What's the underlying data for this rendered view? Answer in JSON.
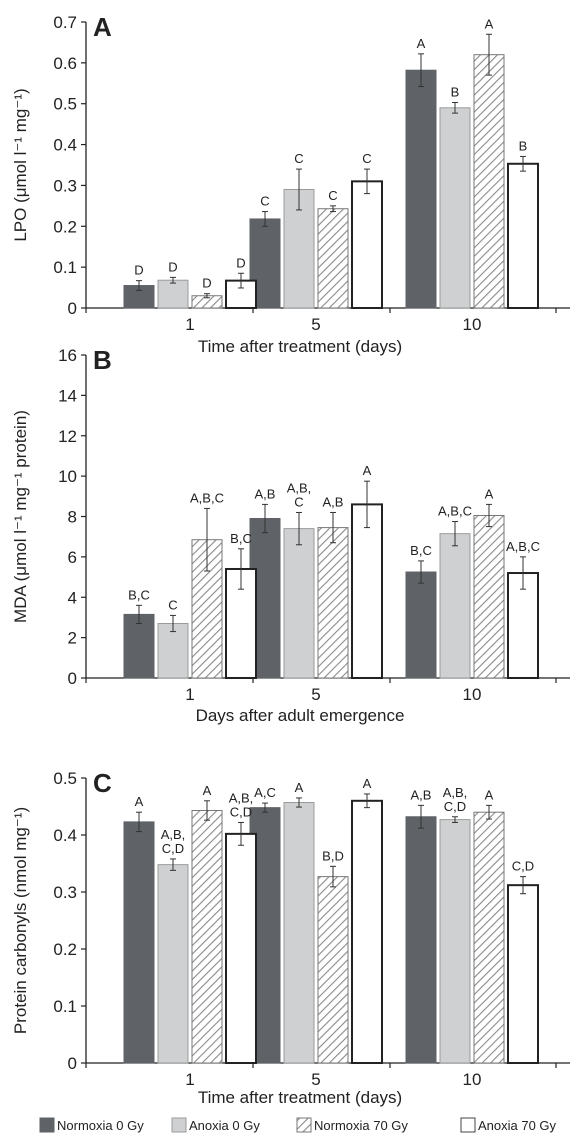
{
  "series_styles": [
    {
      "name": "Normoxia 0 Gy",
      "fill": "#5f6266",
      "stroke": "#5f6266",
      "pattern": "solid"
    },
    {
      "name": "Anoxia 0 Gy",
      "fill": "#cfd0d1",
      "stroke": "#9a9b9c",
      "pattern": "solid"
    },
    {
      "name": "Normoxia 70 Gy",
      "fill": "#ffffff",
      "stroke": "#777777",
      "pattern": "hatch"
    },
    {
      "name": "Anoxia 70 Gy",
      "fill": "#ffffff",
      "stroke": "#222222",
      "pattern": "outline"
    }
  ],
  "chart_data": [
    {
      "type": "bar",
      "panel": "A",
      "categories": [
        "1",
        "5",
        "10"
      ],
      "xlabel": "Time after treatment (days)",
      "ylabel": "LPO (μmol l⁻¹ mg⁻¹)",
      "ylim": [
        0,
        0.7
      ],
      "yticks": [
        "0",
        "0.1",
        "0.2",
        "0.3",
        "0.4",
        "0.5",
        "0.6",
        "0.7"
      ],
      "grid": false,
      "series": [
        {
          "name": "Normoxia 0 Gy",
          "values": [
            0.055,
            0.218,
            0.582
          ],
          "errors": [
            0.012,
            0.018,
            0.04
          ],
          "labels": [
            "D",
            "C",
            "A"
          ]
        },
        {
          "name": "Anoxia 0 Gy",
          "values": [
            0.068,
            0.29,
            0.49
          ],
          "errors": [
            0.007,
            0.05,
            0.013
          ],
          "labels": [
            "D",
            "C",
            "B"
          ]
        },
        {
          "name": "Normoxia 70 Gy",
          "values": [
            0.03,
            0.243,
            0.62
          ],
          "errors": [
            0.005,
            0.007,
            0.05
          ],
          "labels": [
            "D",
            "C",
            "A"
          ]
        },
        {
          "name": "Anoxia 70 Gy",
          "values": [
            0.067,
            0.31,
            0.353
          ],
          "errors": [
            0.018,
            0.03,
            0.018
          ],
          "labels": [
            "D",
            "C",
            "B"
          ]
        }
      ]
    },
    {
      "type": "bar",
      "panel": "B",
      "categories": [
        "1",
        "5",
        "10"
      ],
      "xlabel": "Days after adult emergence",
      "ylabel": "MDA (μmol l⁻¹ mg⁻¹ protein)",
      "ylim": [
        0,
        16
      ],
      "yticks": [
        "0",
        "2",
        "4",
        "6",
        "8",
        "10",
        "12",
        "14",
        "16"
      ],
      "grid": false,
      "series": [
        {
          "name": "Normoxia 0 Gy",
          "values": [
            3.15,
            7.9,
            5.25
          ],
          "errors": [
            0.45,
            0.7,
            0.55
          ],
          "labels": [
            "B,C",
            "A,B",
            "B,C"
          ]
        },
        {
          "name": "Anoxia 0 Gy",
          "values": [
            2.7,
            7.4,
            7.15
          ],
          "errors": [
            0.4,
            0.8,
            0.6
          ],
          "labels": [
            "C",
            "A,B,|C",
            "A,B,C"
          ]
        },
        {
          "name": "Normoxia 70 Gy",
          "values": [
            6.85,
            7.45,
            8.05
          ],
          "errors": [
            1.55,
            0.75,
            0.55
          ],
          "labels": [
            "A,B,C",
            "A,B",
            "A"
          ]
        },
        {
          "name": "Anoxia 70 Gy",
          "values": [
            5.4,
            8.6,
            5.2
          ],
          "errors": [
            1.0,
            1.15,
            0.8
          ],
          "labels": [
            "B,C",
            "A",
            "A,B,C"
          ]
        }
      ]
    },
    {
      "type": "bar",
      "panel": "C",
      "categories": [
        "1",
        "5",
        "10"
      ],
      "xlabel": "Time after treatment (days)",
      "ylabel": "Protein carbonyls (nmol mg⁻¹)",
      "ylim": [
        0,
        0.5
      ],
      "yticks": [
        "0",
        "0.1",
        "0.2",
        "0.3",
        "0.4",
        "0.5"
      ],
      "grid": false,
      "series": [
        {
          "name": "Normoxia 0 Gy",
          "values": [
            0.423,
            0.448,
            0.432
          ],
          "errors": [
            0.017,
            0.008,
            0.02
          ],
          "labels": [
            "A",
            "A,C",
            "A,B"
          ]
        },
        {
          "name": "Anoxia 0 Gy",
          "values": [
            0.348,
            0.457,
            0.427
          ],
          "errors": [
            0.01,
            0.008,
            0.005
          ],
          "labels": [
            "A,B,|C,D",
            "A",
            "A,B,|C,D"
          ]
        },
        {
          "name": "Normoxia 70 Gy",
          "values": [
            0.443,
            0.327,
            0.44
          ],
          "errors": [
            0.017,
            0.018,
            0.012
          ],
          "labels": [
            "A",
            "B,D",
            "A"
          ]
        },
        {
          "name": "Anoxia 70 Gy",
          "values": [
            0.402,
            0.46,
            0.312
          ],
          "errors": [
            0.02,
            0.012,
            0.015
          ],
          "labels": [
            "A,B,|C,D",
            "A",
            "C,D"
          ]
        }
      ]
    }
  ]
}
